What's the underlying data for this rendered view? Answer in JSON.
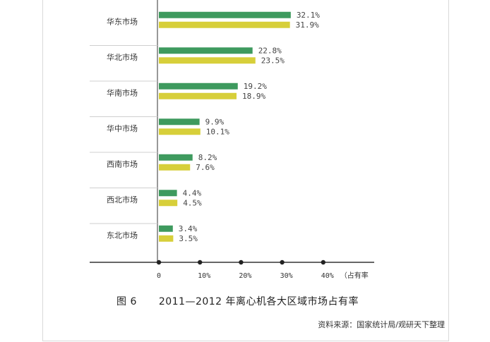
{
  "chart_data": {
    "type": "bar",
    "orientation": "horizontal",
    "categories": [
      "华东市场",
      "华北市场",
      "华南市场",
      "华中市场",
      "西南市场",
      "西北市场",
      "东北市场"
    ],
    "series": [
      {
        "values": [
          32.1,
          22.8,
          19.2,
          9.9,
          8.2,
          4.4,
          3.4
        ],
        "labels": [
          "32.1%",
          "22.8%",
          "19.2%",
          "9.9%",
          "8.2%",
          "4.4%",
          "3.4%"
        ]
      },
      {
        "values": [
          31.9,
          23.5,
          18.9,
          10.1,
          7.6,
          4.5,
          3.5
        ],
        "labels": [
          "31.9%",
          "23.5%",
          "18.9%",
          "10.1%",
          "7.6%",
          "4.5%",
          "3.5%"
        ]
      }
    ],
    "x_ticks": [
      "0",
      "10%",
      "20%",
      "30%",
      "40%"
    ],
    "xlabel": "（占有率",
    "xlim": [
      0,
      40
    ],
    "grid": false,
    "legend": "none"
  },
  "colors": {
    "series1": "#3e9a5e",
    "series2": "#d7cf3a",
    "axis": "#333333",
    "separator": "#cfcfcf"
  },
  "caption": {
    "figure": "图 6",
    "title": "2011—2012 年离心机各大区域市场占有率"
  },
  "source": "资料来源：国家统计局/观研天下整理"
}
